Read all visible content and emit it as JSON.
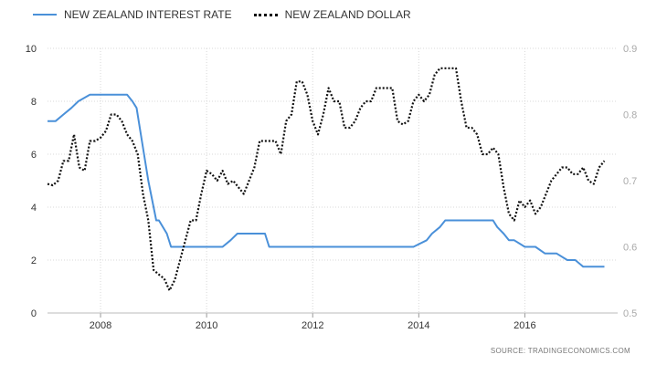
{
  "chart_data": {
    "type": "line",
    "legend_placement": "top-left",
    "grid": true,
    "series": [
      {
        "name": "NEW ZEALAND INTEREST RATE",
        "axis": "left",
        "color": "#4a90d9",
        "style": "solid",
        "x": [
          2007.0,
          2007.15,
          2007.3,
          2007.45,
          2007.58,
          2007.8,
          2008.0,
          2008.2,
          2008.4,
          2008.5,
          2008.6,
          2008.68,
          2008.78,
          2008.9,
          2009.05,
          2009.1,
          2009.25,
          2009.33,
          2009.4,
          2010.2,
          2010.3,
          2010.45,
          2010.58,
          2011.1,
          2011.18,
          2013.9,
          2014.15,
          2014.25,
          2014.4,
          2014.5,
          2014.6,
          2015.4,
          2015.48,
          2015.6,
          2015.7,
          2015.8,
          2016.0,
          2016.2,
          2016.38,
          2016.6,
          2016.8,
          2016.95,
          2017.1,
          2017.3,
          2017.5
        ],
        "y": [
          7.25,
          7.25,
          7.5,
          7.75,
          8.0,
          8.25,
          8.25,
          8.25,
          8.25,
          8.25,
          8.0,
          7.75,
          6.5,
          5.0,
          3.5,
          3.5,
          3.0,
          2.5,
          2.5,
          2.5,
          2.5,
          2.75,
          3.0,
          3.0,
          2.5,
          2.5,
          2.75,
          3.0,
          3.25,
          3.5,
          3.5,
          3.5,
          3.25,
          3.0,
          2.75,
          2.75,
          2.5,
          2.5,
          2.25,
          2.25,
          2.0,
          2.0,
          1.75,
          1.75,
          1.75
        ]
      },
      {
        "name": "NEW ZEALAND DOLLAR",
        "axis": "right",
        "color": "#111111",
        "style": "dotted",
        "x": [
          2007.0,
          2007.1,
          2007.2,
          2007.3,
          2007.4,
          2007.5,
          2007.6,
          2007.7,
          2007.8,
          2007.9,
          2008.0,
          2008.1,
          2008.2,
          2008.3,
          2008.4,
          2008.5,
          2008.6,
          2008.7,
          2008.8,
          2008.9,
          2009.0,
          2009.1,
          2009.2,
          2009.3,
          2009.4,
          2009.5,
          2009.6,
          2009.7,
          2009.8,
          2009.9,
          2010.0,
          2010.1,
          2010.2,
          2010.3,
          2010.4,
          2010.5,
          2010.6,
          2010.7,
          2010.8,
          2010.9,
          2011.0,
          2011.1,
          2011.2,
          2011.3,
          2011.4,
          2011.5,
          2011.6,
          2011.7,
          2011.8,
          2011.9,
          2012.0,
          2012.1,
          2012.2,
          2012.3,
          2012.4,
          2012.5,
          2012.6,
          2012.7,
          2012.8,
          2012.9,
          2013.0,
          2013.1,
          2013.2,
          2013.3,
          2013.4,
          2013.5,
          2013.6,
          2013.7,
          2013.8,
          2013.9,
          2014.0,
          2014.1,
          2014.2,
          2014.3,
          2014.4,
          2014.5,
          2014.6,
          2014.7,
          2014.8,
          2014.9,
          2015.0,
          2015.1,
          2015.2,
          2015.3,
          2015.4,
          2015.5,
          2015.6,
          2015.7,
          2015.8,
          2015.9,
          2016.0,
          2016.1,
          2016.2,
          2016.3,
          2016.4,
          2016.5,
          2016.6,
          2016.7,
          2016.8,
          2016.9,
          2017.0,
          2017.1,
          2017.2,
          2017.3,
          2017.4,
          2017.5
        ],
        "y": [
          0.695,
          0.693,
          0.7,
          0.73,
          0.73,
          0.77,
          0.72,
          0.715,
          0.76,
          0.76,
          0.765,
          0.775,
          0.8,
          0.8,
          0.79,
          0.77,
          0.76,
          0.74,
          0.68,
          0.64,
          0.565,
          0.558,
          0.552,
          0.534,
          0.55,
          0.58,
          0.61,
          0.64,
          0.64,
          0.68,
          0.715,
          0.71,
          0.7,
          0.715,
          0.695,
          0.7,
          0.69,
          0.68,
          0.7,
          0.72,
          0.76,
          0.76,
          0.76,
          0.76,
          0.74,
          0.79,
          0.8,
          0.85,
          0.85,
          0.83,
          0.79,
          0.77,
          0.8,
          0.84,
          0.82,
          0.82,
          0.78,
          0.78,
          0.79,
          0.81,
          0.82,
          0.82,
          0.84,
          0.84,
          0.84,
          0.84,
          0.79,
          0.785,
          0.79,
          0.82,
          0.83,
          0.82,
          0.83,
          0.86,
          0.87,
          0.87,
          0.87,
          0.87,
          0.82,
          0.78,
          0.78,
          0.77,
          0.74,
          0.74,
          0.75,
          0.74,
          0.69,
          0.65,
          0.64,
          0.67,
          0.66,
          0.67,
          0.65,
          0.66,
          0.68,
          0.7,
          0.71,
          0.72,
          0.72,
          0.71,
          0.71,
          0.72,
          0.7,
          0.695,
          0.72,
          0.73
        ]
      }
    ],
    "x_axis": {
      "ticks": [
        2008,
        2010,
        2012,
        2014,
        2016
      ],
      "tick_labels": [
        "2008",
        "2010",
        "2012",
        "2014",
        "2016"
      ],
      "range": [
        2007.0,
        2017.75
      ]
    },
    "y_left": {
      "range": [
        0,
        10
      ],
      "ticks": [
        0,
        2,
        4,
        6,
        8,
        10
      ],
      "tick_labels": [
        "0",
        "2",
        "4",
        "6",
        "8",
        "10"
      ]
    },
    "y_right": {
      "range": [
        0.5,
        0.9
      ],
      "ticks": [
        0.5,
        0.6,
        0.7,
        0.8,
        0.9
      ],
      "tick_labels": [
        "0.5",
        "0.6",
        "0.7",
        "0.8",
        "0.9"
      ]
    }
  },
  "legend": {
    "items": [
      {
        "label": "NEW ZEALAND INTEREST RATE"
      },
      {
        "label": "NEW ZEALAND DOLLAR"
      }
    ]
  },
  "source": "SOURCE: TRADINGECONOMICS.COM"
}
